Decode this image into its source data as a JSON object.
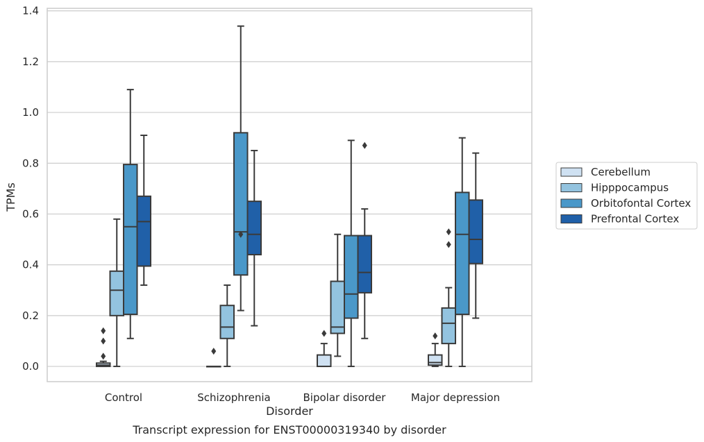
{
  "chart_data": {
    "type": "box",
    "title": "",
    "caption": "Transcript expression for ENST00000319340 by disorder",
    "xlabel": "Disorder",
    "ylabel": "TPMs",
    "ylim": [
      -0.06,
      1.41
    ],
    "yticks": [
      0.0,
      0.2,
      0.4,
      0.6,
      0.8,
      1.0,
      1.2,
      1.4
    ],
    "ytick_labels": [
      "0.0",
      "0.2",
      "0.4",
      "0.6",
      "0.8",
      "1.0",
      "1.2",
      "1.4"
    ],
    "grid": "horizontal",
    "legend_position": "right",
    "categories": [
      "Control",
      "Schizophrenia",
      "Bipolar disorder",
      "Major depression"
    ],
    "series": [
      {
        "name": "Cerebellum",
        "color": "#cfe1f2",
        "boxes": [
          {
            "whisker_low": 0.0,
            "q1": 0.0,
            "median": 0.005,
            "q3": 0.013,
            "whisker_high": 0.02,
            "outliers": [
              0.04,
              0.1,
              0.14
            ]
          },
          {
            "whisker_low": 0.0,
            "q1": 0.0,
            "median": 0.0,
            "q3": 0.0,
            "whisker_high": 0.0,
            "outliers": [
              0.06
            ]
          },
          {
            "whisker_low": 0.0,
            "q1": 0.0,
            "median": 0.0,
            "q3": 0.045,
            "whisker_high": 0.09,
            "outliers": [
              0.13
            ]
          },
          {
            "whisker_low": 0.0,
            "q1": 0.005,
            "median": 0.015,
            "q3": 0.045,
            "whisker_high": 0.09,
            "outliers": [
              0.12
            ]
          }
        ]
      },
      {
        "name": "Hipppocampus",
        "color": "#93c3df",
        "boxes": [
          {
            "whisker_low": 0.0,
            "q1": 0.2,
            "median": 0.3,
            "q3": 0.375,
            "whisker_high": 0.58,
            "outliers": []
          },
          {
            "whisker_low": 0.0,
            "q1": 0.11,
            "median": 0.155,
            "q3": 0.24,
            "whisker_high": 0.32,
            "outliers": []
          },
          {
            "whisker_low": 0.04,
            "q1": 0.13,
            "median": 0.155,
            "q3": 0.335,
            "whisker_high": 0.52,
            "outliers": []
          },
          {
            "whisker_low": 0.0,
            "q1": 0.09,
            "median": 0.17,
            "q3": 0.23,
            "whisker_high": 0.31,
            "outliers": [
              0.48,
              0.53
            ]
          }
        ]
      },
      {
        "name": "Orbitofontal Cortex",
        "color": "#4a98c9",
        "boxes": [
          {
            "whisker_low": 0.11,
            "q1": 0.205,
            "median": 0.55,
            "q3": 0.795,
            "whisker_high": 1.09,
            "outliers": []
          },
          {
            "whisker_low": 0.22,
            "q1": 0.36,
            "median": 0.53,
            "q3": 0.92,
            "whisker_high": 1.34,
            "outliers": [
              0.52
            ]
          },
          {
            "whisker_low": 0.0,
            "q1": 0.19,
            "median": 0.285,
            "q3": 0.515,
            "whisker_high": 0.89,
            "outliers": []
          },
          {
            "whisker_low": 0.0,
            "q1": 0.205,
            "median": 0.52,
            "q3": 0.685,
            "whisker_high": 0.9,
            "outliers": []
          }
        ]
      },
      {
        "name": "Prefrontal Cortex",
        "color": "#2060a8",
        "boxes": [
          {
            "whisker_low": 0.32,
            "q1": 0.395,
            "median": 0.57,
            "q3": 0.67,
            "whisker_high": 0.91,
            "outliers": []
          },
          {
            "whisker_low": 0.16,
            "q1": 0.44,
            "median": 0.52,
            "q3": 0.65,
            "whisker_high": 0.85,
            "outliers": []
          },
          {
            "whisker_low": 0.11,
            "q1": 0.29,
            "median": 0.37,
            "q3": 0.515,
            "whisker_high": 0.62,
            "outliers": [
              0.87
            ]
          },
          {
            "whisker_low": 0.19,
            "q1": 0.405,
            "median": 0.5,
            "q3": 0.655,
            "whisker_high": 0.84,
            "outliers": []
          }
        ]
      }
    ]
  }
}
